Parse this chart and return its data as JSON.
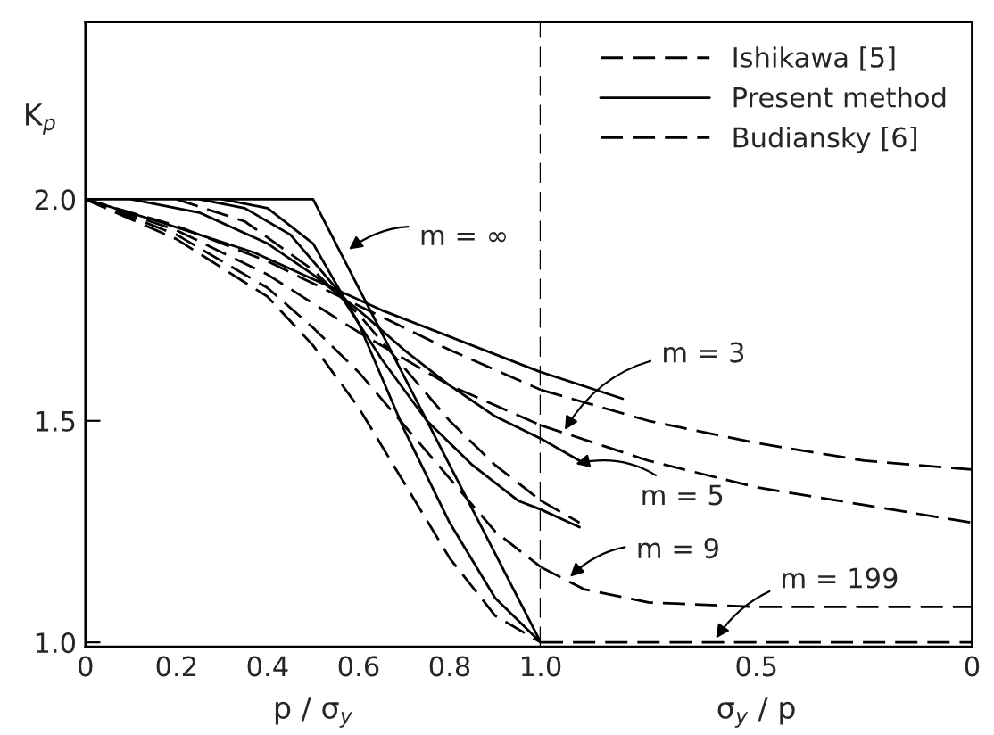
{
  "chart_data": [
    {
      "type": "line",
      "xlabel": "p / σ$_{y}$",
      "ylabel": "K$_{p}$",
      "xlim": [
        0,
        1.0
      ],
      "xticks": [
        0,
        0.2,
        0.4,
        0.6,
        0.8,
        {
          "value": 1.0,
          "label": "1.0"
        }
      ],
      "ylim": [
        0.99,
        2.4
      ],
      "yticks": [
        {
          "value": 1.0,
          "label": "1.0"
        },
        {
          "value": 1.5,
          "label": "1.5"
        },
        {
          "value": 2.0,
          "label": "2.0"
        }
      ],
      "grid": false,
      "marker": "none",
      "ref_lines": [
        {
          "axis": "x",
          "value": 1.0,
          "line_style": "dashed",
          "color": "#000000"
        }
      ],
      "series": [
        {
          "color": "#000000",
          "line_style": "dashed",
          "x": [
            0,
            0.2,
            0.4,
            0.6,
            0.8,
            1.0
          ],
          "values": [
            2.0,
            1.93,
            1.83,
            1.7,
            1.58,
            1.49
          ]
        },
        {
          "color": "#000000",
          "line_style": "dashed",
          "x": [
            0,
            0.2,
            0.4,
            0.5,
            0.6,
            0.7,
            0.8,
            0.9,
            1.0
          ],
          "values": [
            2.0,
            1.92,
            1.8,
            1.71,
            1.61,
            1.49,
            1.37,
            1.25,
            1.17
          ]
        },
        {
          "color": "#000000",
          "line_style": "dashed",
          "x": [
            0,
            0.2,
            0.4,
            0.5,
            0.6,
            0.7,
            0.8,
            0.9,
            1.0
          ],
          "values": [
            2.0,
            1.91,
            1.78,
            1.67,
            1.53,
            1.36,
            1.19,
            1.06,
            1.0
          ]
        },
        {
          "color": "#000000",
          "line_style": "solid",
          "x": [
            0,
            0.5,
            1.0
          ],
          "values": [
            2.0,
            2.0,
            1.0
          ]
        },
        {
          "color": "#000000",
          "line_style": "solid",
          "x": [
            0,
            0.16,
            0.37,
            0.65,
            1.0
          ],
          "values": [
            2.0,
            1.95,
            1.88,
            1.75,
            1.61
          ]
        },
        {
          "color": "#000000",
          "line_style": "solid",
          "x": [
            0.1,
            0.25,
            0.4,
            0.5,
            0.6,
            0.7,
            0.8,
            0.9,
            1.0
          ],
          "values": [
            2.0,
            1.97,
            1.9,
            1.83,
            1.75,
            1.66,
            1.58,
            1.51,
            1.46
          ]
        },
        {
          "color": "#000000",
          "line_style": "solid",
          "x": [
            0.25,
            0.35,
            0.45,
            0.55,
            0.65,
            0.75,
            0.85,
            0.95,
            1.0
          ],
          "values": [
            2.0,
            1.98,
            1.92,
            1.8,
            1.64,
            1.5,
            1.4,
            1.32,
            1.3
          ]
        },
        {
          "color": "#000000",
          "line_style": "solid",
          "x": [
            0.3,
            0.4,
            0.5,
            0.6,
            0.7,
            0.8,
            0.9,
            1.0
          ],
          "values": [
            2.0,
            1.98,
            1.9,
            1.72,
            1.48,
            1.27,
            1.1,
            1.0
          ]
        },
        {
          "color": "#000000",
          "line_style": "dashed",
          "x": [
            0,
            0.2,
            0.4,
            0.6,
            0.8,
            1.0
          ],
          "values": [
            2.0,
            1.94,
            1.86,
            1.76,
            1.66,
            1.57
          ]
        },
        {
          "color": "#000000",
          "line_style": "dashed",
          "x": [
            0.2,
            0.35,
            0.5,
            0.6,
            0.7,
            0.8,
            0.9,
            1.0
          ],
          "values": [
            2.0,
            1.95,
            1.84,
            1.74,
            1.62,
            1.5,
            1.4,
            1.32
          ]
        }
      ],
      "annotations": [
        {
          "text": "m = ∞",
          "x": 0.57,
          "y": 1.88
        }
      ]
    },
    {
      "type": "line",
      "xlabel": "σ$_{y}$ / p",
      "xlim": [
        1.0,
        0
      ],
      "xticks": [
        {
          "value": 0.5,
          "label": "0.5"
        },
        0
      ],
      "ylim": [
        0.99,
        2.4
      ],
      "tick_labels": "x",
      "grid": false,
      "legend": "top right",
      "marker": "none",
      "series": [
        {
          "name": "Ishikawa [5]",
          "color": "#000000",
          "line_style": "dashed",
          "x": [
            1.0,
            0.75,
            0.5,
            0.25,
            0
          ],
          "values": [
            1.49,
            1.41,
            1.35,
            1.31,
            1.27
          ]
        },
        {
          "color": "#000000",
          "line_style": "dashed",
          "x": [
            1.0,
            0.9,
            0.75,
            0.5,
            0.25,
            0
          ],
          "values": [
            1.17,
            1.12,
            1.09,
            1.08,
            1.08,
            1.08
          ]
        },
        {
          "color": "#000000",
          "line_style": "dashed",
          "x": [
            1.0,
            0
          ],
          "values": [
            1.0,
            1.0
          ]
        },
        {
          "name": "Present method",
          "color": "#000000",
          "line_style": "solid",
          "x": [
            1.0,
            0.81
          ],
          "values": [
            1.61,
            1.55
          ]
        },
        {
          "color": "#000000",
          "line_style": "solid",
          "x": [
            1.0,
            0.91
          ],
          "values": [
            1.46,
            1.41
          ]
        },
        {
          "color": "#000000",
          "line_style": "solid",
          "x": [
            1.0,
            0.91
          ],
          "values": [
            1.3,
            1.26
          ]
        },
        {
          "name": "Budiansky [6]",
          "color": "#000000",
          "line_style": "dashed",
          "x": [
            1.0,
            0.75,
            0.5,
            0.25,
            0
          ],
          "values": [
            1.57,
            1.5,
            1.45,
            1.41,
            1.39
          ]
        },
        {
          "color": "#000000",
          "line_style": "dashed",
          "x": [
            1.0,
            0.91
          ],
          "values": [
            1.32,
            1.27
          ]
        }
      ],
      "annotations": [
        {
          "text": "m = 3",
          "x": 0.95,
          "y": 1.47
        },
        {
          "text": "m = 5",
          "x": 0.93,
          "y": 1.4
        },
        {
          "text": "m = 9",
          "x": 0.94,
          "y": 1.14
        },
        {
          "text": "m = 199",
          "x": 0.6,
          "y": 1.0
        }
      ]
    }
  ]
}
